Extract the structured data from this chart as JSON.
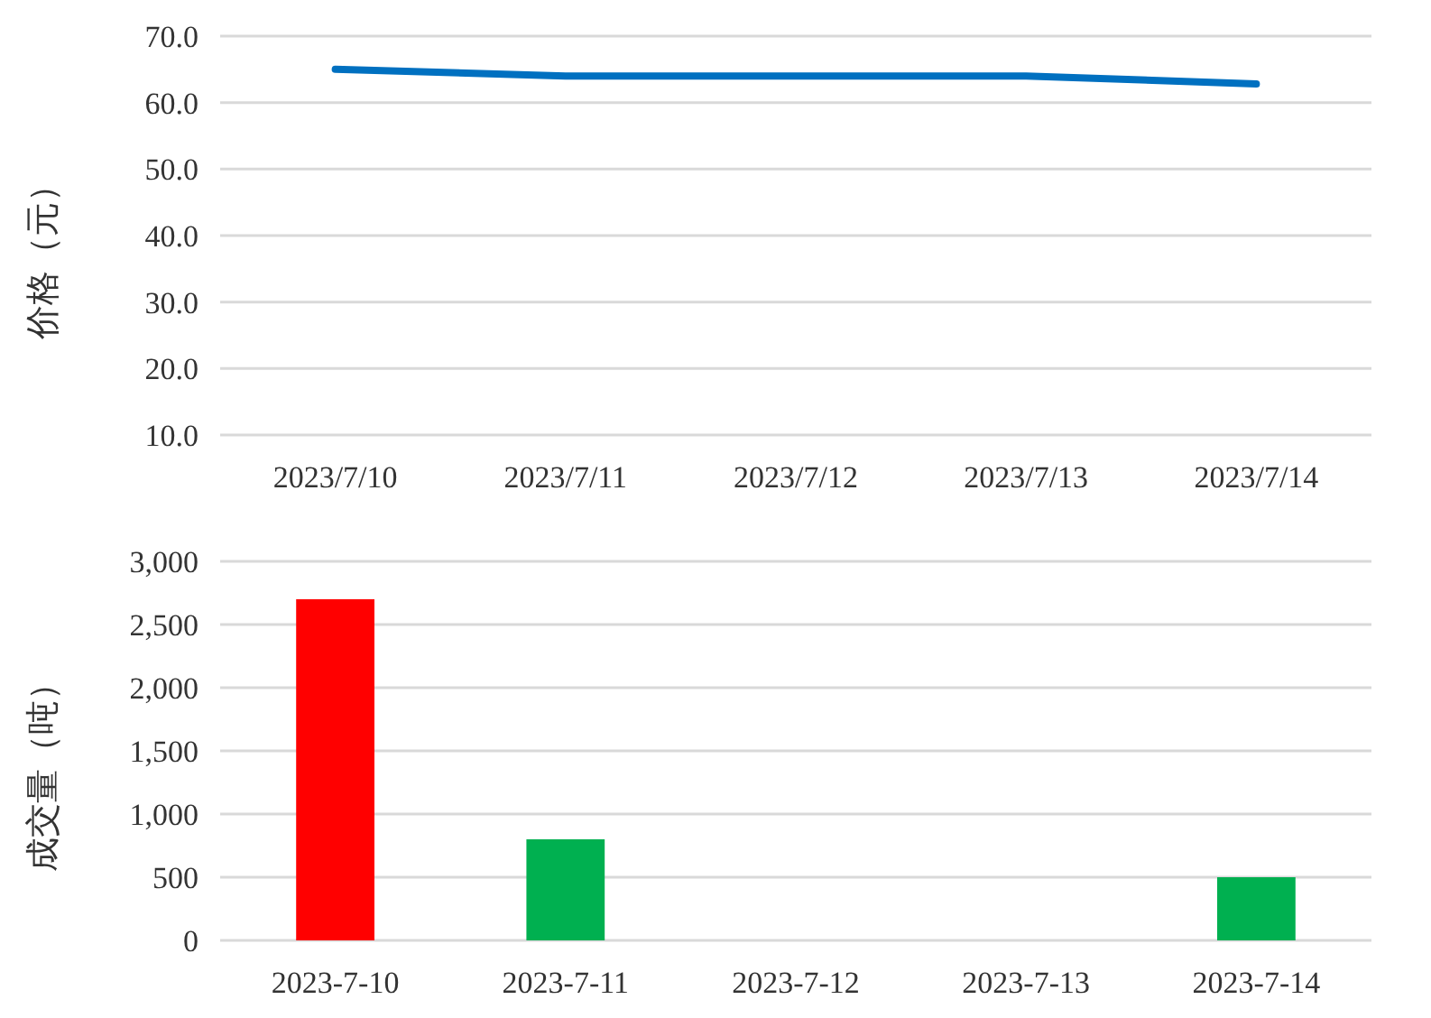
{
  "chart_data": [
    {
      "type": "line",
      "ylabel": "价格（元）",
      "categories": [
        "2023/7/10",
        "2023/7/11",
        "2023/7/12",
        "2023/7/13",
        "2023/7/14"
      ],
      "series": [
        {
          "color": "#0070c0",
          "values": [
            65,
            64,
            64,
            64,
            62.8
          ]
        }
      ],
      "ylim": [
        10,
        70
      ],
      "yticks": [
        {
          "value": 10,
          "label": "10.0"
        },
        {
          "value": 20,
          "label": "20.0"
        },
        {
          "value": 30,
          "label": "30.0"
        },
        {
          "value": 40,
          "label": "40.0"
        },
        {
          "value": 50,
          "label": "50.0"
        },
        {
          "value": 60,
          "label": "60.0"
        },
        {
          "value": 70,
          "label": "70.0"
        }
      ],
      "grid": "y",
      "marker": "none",
      "line_style": "solid"
    },
    {
      "type": "bar",
      "ylabel": "成交量（吨）",
      "categories": [
        "2023-7-10",
        "2023-7-11",
        "2023-7-12",
        "2023-7-13",
        "2023-7-14"
      ],
      "values": [
        2700,
        800,
        0,
        0,
        500
      ],
      "colors": [
        "#ff0000",
        "#00b050",
        "#00b050",
        "#00b050",
        "#00b050"
      ],
      "ylim": [
        0,
        3000
      ],
      "yticks": [
        0,
        500,
        {
          "value": 1000,
          "label": "1,000"
        },
        {
          "value": 1500,
          "label": "1,500"
        },
        {
          "value": 2000,
          "label": "2,000"
        },
        {
          "value": 2500,
          "label": "2,500"
        },
        {
          "value": 3000,
          "label": "3,000"
        }
      ],
      "grid": "y"
    }
  ]
}
